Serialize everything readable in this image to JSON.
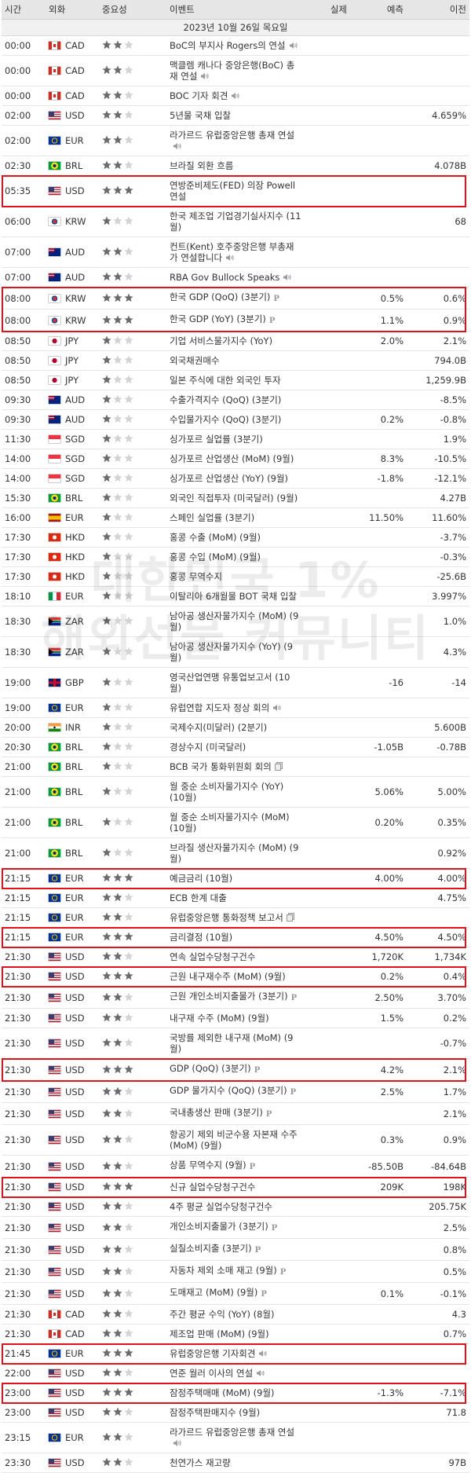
{
  "columns": [
    "시간",
    "외화",
    "중요성",
    "이벤트",
    "실제",
    "예측",
    "이전"
  ],
  "date": "2023년 10월 26일 목요일",
  "watermark": [
    "대한민국 1%",
    "해외선물 커뮤니티"
  ],
  "rows": [
    {
      "time": "00:00",
      "currency": "CAD",
      "flag": "ca",
      "importance": 2,
      "event": "BoC의 부지사 Rogers의 연설",
      "icon": "speaker"
    },
    {
      "time": "00:00",
      "currency": "CAD",
      "flag": "ca",
      "importance": 2,
      "event": "맥클렘 캐나다 중앙은행(BoC) 총재 연설",
      "icon": "speaker"
    },
    {
      "time": "00:00",
      "currency": "CAD",
      "flag": "ca",
      "importance": 2,
      "event": "BOC 기자 회견",
      "icon": "speaker"
    },
    {
      "time": "02:00",
      "currency": "USD",
      "flag": "us",
      "importance": 2,
      "event": "5년물 국채 입찰",
      "previous": "4.659%"
    },
    {
      "time": "02:00",
      "currency": "EUR",
      "flag": "eu",
      "importance": 2,
      "event": "라가르드 유럽중앙은행 총재 연설",
      "icon": "speaker"
    },
    {
      "time": "02:30",
      "currency": "BRL",
      "flag": "br",
      "importance": 2,
      "event": "브라질 외환 흐름",
      "previous": "4.078B"
    },
    {
      "time": "05:35",
      "currency": "USD",
      "flag": "us",
      "importance": 3,
      "event": "연방준비제도(FED) 의장 Powell 연설",
      "highlight": true
    },
    {
      "time": "06:00",
      "currency": "KRW",
      "flag": "kr",
      "importance": 1,
      "event": "한국 제조업 기업경기실사지수 (11월)",
      "previous": "68"
    },
    {
      "time": "07:00",
      "currency": "AUD",
      "flag": "au",
      "importance": 2,
      "event": "컨트(Kent) 호주중앙은행 부총재가 연설합니다",
      "icon": "speaker"
    },
    {
      "time": "07:00",
      "currency": "AUD",
      "flag": "au",
      "importance": 2,
      "event": "RBA Gov Bullock Speaks",
      "icon": "speaker"
    },
    {
      "time": "08:00",
      "currency": "KRW",
      "flag": "kr",
      "importance": 3,
      "event": "한국 GDP (QoQ) (3분기)",
      "icon": "P",
      "forecast": "0.5%",
      "previous": "0.6%",
      "highlight": true
    },
    {
      "time": "08:00",
      "currency": "KRW",
      "flag": "kr",
      "importance": 3,
      "event": "한국 GDP (YoY) (3분기)",
      "icon": "P",
      "forecast": "1.1%",
      "previous": "0.9%",
      "highlight": true
    },
    {
      "time": "08:50",
      "currency": "JPY",
      "flag": "jp",
      "importance": 1,
      "event": "기업 서비스물가지수 (YoY)",
      "forecast": "2.0%",
      "previous": "2.1%"
    },
    {
      "time": "08:50",
      "currency": "JPY",
      "flag": "jp",
      "importance": 1,
      "event": "외국채권매수",
      "previous": "794.0B"
    },
    {
      "time": "08:50",
      "currency": "JPY",
      "flag": "jp",
      "importance": 1,
      "event": "일본 주식에 대한 외국인 투자",
      "previous": "1,259.9B"
    },
    {
      "time": "09:30",
      "currency": "AUD",
      "flag": "au",
      "importance": 1,
      "event": "수출가격지수 (QoQ) (3분기)",
      "previous": "-8.5%"
    },
    {
      "time": "09:30",
      "currency": "AUD",
      "flag": "au",
      "importance": 1,
      "event": "수입물가지수 (QoQ) (3분기)",
      "forecast": "0.2%",
      "previous": "-0.8%"
    },
    {
      "time": "11:30",
      "currency": "SGD",
      "flag": "sg",
      "importance": 1,
      "event": "싱가포르 실업률 (3분기)",
      "previous": "1.9%"
    },
    {
      "time": "14:00",
      "currency": "SGD",
      "flag": "sg",
      "importance": 1,
      "event": "싱가포르 산업생산 (MoM) (9월)",
      "forecast": "8.3%",
      "previous": "-10.5%"
    },
    {
      "time": "14:00",
      "currency": "SGD",
      "flag": "sg",
      "importance": 1,
      "event": "싱가포르 산업생산 (YoY) (9월)",
      "forecast": "-1.8%",
      "previous": "-12.1%"
    },
    {
      "time": "15:30",
      "currency": "BRL",
      "flag": "br",
      "importance": 1,
      "event": "외국인 직접투자 (미국달러) (9월)",
      "previous": "4.27B"
    },
    {
      "time": "16:00",
      "currency": "EUR",
      "flag": "es",
      "importance": 1,
      "event": "스페인 실업률 (3분기)",
      "forecast": "11.50%",
      "previous": "11.60%"
    },
    {
      "time": "17:30",
      "currency": "HKD",
      "flag": "hk",
      "importance": 1,
      "event": "홍콩 수출 (MoM) (9월)",
      "previous": "-3.7%"
    },
    {
      "time": "17:30",
      "currency": "HKD",
      "flag": "hk",
      "importance": 1,
      "event": "홍콩 수입 (MoM) (9월)",
      "previous": "-0.3%"
    },
    {
      "time": "17:30",
      "currency": "HKD",
      "flag": "hk",
      "importance": 1,
      "event": "홍콩 무역수지",
      "previous": "-25.6B"
    },
    {
      "time": "18:10",
      "currency": "EUR",
      "flag": "it",
      "importance": 1,
      "event": "이탈리아 6개월물 BOT 국채 입찰",
      "previous": "3.997%"
    },
    {
      "time": "18:30",
      "currency": "ZAR",
      "flag": "za",
      "importance": 1,
      "event": "남아공 생산자물가지수 (MoM) (9월)",
      "previous": "1.0%"
    },
    {
      "time": "18:30",
      "currency": "ZAR",
      "flag": "za",
      "importance": 1,
      "event": "남아공 생산자물가지수 (YoY) (9월)",
      "previous": "4.3%"
    },
    {
      "time": "19:00",
      "currency": "GBP",
      "flag": "gb",
      "importance": 1,
      "event": "영국산업연맹 유통업보고서 (10월)",
      "forecast": "-16",
      "previous": "-14"
    },
    {
      "time": "19:00",
      "currency": "EUR",
      "flag": "eu",
      "importance": 1,
      "event": "유럽연합 지도자 정상 회의",
      "icon": "speaker"
    },
    {
      "time": "20:00",
      "currency": "INR",
      "flag": "in",
      "importance": 1,
      "event": "국제수지(미달러) (2분기)",
      "previous": "5.600B"
    },
    {
      "time": "20:30",
      "currency": "BRL",
      "flag": "br",
      "importance": 1,
      "event": "경상수지 (미국달러)",
      "forecast": "-1.05B",
      "previous": "-0.78B"
    },
    {
      "time": "21:00",
      "currency": "BRL",
      "flag": "br",
      "importance": 1,
      "event": "BCB 국가 통화위원회 회의",
      "icon": "doc"
    },
    {
      "time": "21:00",
      "currency": "BRL",
      "flag": "br",
      "importance": 1,
      "event": "월 중순 소비자물가지수 (YoY) (10월)",
      "forecast": "5.06%",
      "previous": "5.00%"
    },
    {
      "time": "21:00",
      "currency": "BRL",
      "flag": "br",
      "importance": 1,
      "event": "월 중순 소비자물가지수 (MoM) (10월)",
      "forecast": "0.20%",
      "previous": "0.35%"
    },
    {
      "time": "21:00",
      "currency": "BRL",
      "flag": "br",
      "importance": 1,
      "event": "브라질 생산자물가지수 (MoM) (9월)",
      "previous": "0.92%"
    },
    {
      "time": "21:15",
      "currency": "EUR",
      "flag": "eu",
      "importance": 3,
      "event": "예금금리 (10월)",
      "forecast": "4.00%",
      "previous": "4.00%",
      "highlight": true
    },
    {
      "time": "21:15",
      "currency": "EUR",
      "flag": "eu",
      "importance": 2,
      "event": "ECB 한계 대출",
      "previous": "4.75%"
    },
    {
      "time": "21:15",
      "currency": "EUR",
      "flag": "eu",
      "importance": 2,
      "event": "유럽중앙은행 통화정책 보고서",
      "icon": "doc"
    },
    {
      "time": "21:15",
      "currency": "EUR",
      "flag": "eu",
      "importance": 3,
      "event": "금리결정 (10월)",
      "forecast": "4.50%",
      "previous": "4.50%",
      "highlight": true
    },
    {
      "time": "21:30",
      "currency": "USD",
      "flag": "us",
      "importance": 2,
      "event": "연속 실업수당청구건수",
      "forecast": "1,720K",
      "previous": "1,734K"
    },
    {
      "time": "21:30",
      "currency": "USD",
      "flag": "us",
      "importance": 3,
      "event": "근원 내구재수주 (MoM) (9월)",
      "forecast": "0.2%",
      "previous": "0.4%",
      "highlight": true
    },
    {
      "time": "21:30",
      "currency": "USD",
      "flag": "us",
      "importance": 2,
      "event": "근원 개인소비지출물가 (3분기)",
      "icon": "P",
      "forecast": "2.50%",
      "previous": "3.70%"
    },
    {
      "time": "21:30",
      "currency": "USD",
      "flag": "us",
      "importance": 2,
      "event": "내구재 수주 (MoM) (9월)",
      "forecast": "1.5%",
      "previous": "0.2%"
    },
    {
      "time": "21:30",
      "currency": "USD",
      "flag": "us",
      "importance": 2,
      "event": "국방를 제외한 내구재 (MoM) (9월)",
      "previous": "-0.7%"
    },
    {
      "time": "21:30",
      "currency": "USD",
      "flag": "us",
      "importance": 3,
      "event": "GDP (QoQ) (3분기)",
      "icon": "P",
      "forecast": "4.2%",
      "previous": "2.1%",
      "highlight": true
    },
    {
      "time": "21:30",
      "currency": "USD",
      "flag": "us",
      "importance": 2,
      "event": "GDP 물가지수 (QoQ) (3분기)",
      "icon": "P",
      "forecast": "2.5%",
      "previous": "1.7%"
    },
    {
      "time": "21:30",
      "currency": "USD",
      "flag": "us",
      "importance": 2,
      "event": "국내총생산 판매 (3분기)",
      "icon": "P",
      "previous": "2.1%"
    },
    {
      "time": "21:30",
      "currency": "USD",
      "flag": "us",
      "importance": 2,
      "event": "항공기 제외 비군수용 자본재 수주 (MoM) (9월)",
      "forecast": "0.3%",
      "previous": "0.9%"
    },
    {
      "time": "21:30",
      "currency": "USD",
      "flag": "us",
      "importance": 2,
      "event": "상품 무역수지 (9월)",
      "icon": "P",
      "forecast": "-85.50B",
      "previous": "-84.64B"
    },
    {
      "time": "21:30",
      "currency": "USD",
      "flag": "us",
      "importance": 3,
      "event": "신규 실업수당청구건수",
      "forecast": "209K",
      "previous": "198K",
      "highlight": true
    },
    {
      "time": "21:30",
      "currency": "USD",
      "flag": "us",
      "importance": 2,
      "event": "4주 평균 실업수당청구건수",
      "previous": "205.75K"
    },
    {
      "time": "21:30",
      "currency": "USD",
      "flag": "us",
      "importance": 2,
      "event": "개인소비지출물가 (3분기)",
      "icon": "P",
      "previous": "2.5%"
    },
    {
      "time": "21:30",
      "currency": "USD",
      "flag": "us",
      "importance": 2,
      "event": "실질소비지출 (3분기)",
      "icon": "P",
      "previous": "0.8%"
    },
    {
      "time": "21:30",
      "currency": "USD",
      "flag": "us",
      "importance": 2,
      "event": "자동차 제외 소매 재고 (9월)",
      "icon": "P",
      "previous": "0.5%"
    },
    {
      "time": "21:30",
      "currency": "USD",
      "flag": "us",
      "importance": 2,
      "event": "도매재고 (MoM) (9월)",
      "icon": "P",
      "forecast": "0.1%",
      "previous": "-0.1%"
    },
    {
      "time": "21:30",
      "currency": "CAD",
      "flag": "ca",
      "importance": 2,
      "event": "주간 평균 수익 (YoY) (8월)",
      "previous": "4.3"
    },
    {
      "time": "21:30",
      "currency": "CAD",
      "flag": "ca",
      "importance": 2,
      "event": "제조업 판매 (MoM) (9월)",
      "previous": "0.7%"
    },
    {
      "time": "21:45",
      "currency": "EUR",
      "flag": "eu",
      "importance": 3,
      "event": "유럽중앙은행 기자회견",
      "icon": "speaker",
      "highlight": true
    },
    {
      "time": "22:00",
      "currency": "USD",
      "flag": "us",
      "importance": 2,
      "event": "연준 월러 이사의 연설",
      "icon": "speaker"
    },
    {
      "time": "23:00",
      "currency": "USD",
      "flag": "us",
      "importance": 3,
      "event": "잠정주택매매 (MoM) (9월)",
      "forecast": "-1.3%",
      "previous": "-7.1%",
      "highlight": true
    },
    {
      "time": "23:00",
      "currency": "USD",
      "flag": "us",
      "importance": 2,
      "event": "잠정주택판매지수 (9월)",
      "previous": "71.8"
    },
    {
      "time": "23:15",
      "currency": "EUR",
      "flag": "eu",
      "importance": 2,
      "event": "라가르드 유럽중앙은행 총재 연설",
      "icon": "speaker"
    },
    {
      "time": "23:30",
      "currency": "USD",
      "flag": "us",
      "importance": 2,
      "event": "천연가스 재고량",
      "previous": "97B"
    }
  ]
}
